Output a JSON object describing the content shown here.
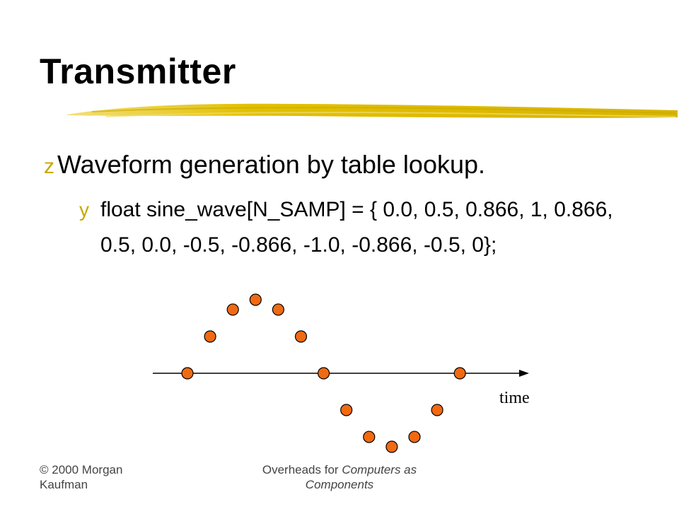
{
  "slide": {
    "title": "Transmitter",
    "bullet_level1": "Waveform generation by table lookup.",
    "bullet_level1_marker": "z",
    "bullet_level2_marker": "y",
    "bullet_level2": "float sine_wave[N_SAMP] = { 0.0, 0.5, 0.866, 1, 0.866, 0.5, 0.0, -0.5, -0.866, -1.0, -0.866,  -0.5, 0};",
    "accent_color": "#d4b400",
    "dot_color": "#f06a12"
  },
  "chart_data": {
    "type": "scatter",
    "xlabel": "time",
    "ylabel": "",
    "series": [
      {
        "x": [
          0,
          1,
          2,
          3,
          4,
          5,
          6,
          7,
          8,
          9,
          10,
          11,
          12
        ],
        "y": [
          0.0,
          0.5,
          0.866,
          1,
          0.866,
          0.5,
          0.0,
          -0.5,
          -0.866,
          -1.0,
          -0.866,
          -0.5,
          0
        ]
      }
    ],
    "ylim": [
      -1,
      1
    ]
  },
  "footer": {
    "left": "© 2000 Morgan Kaufman",
    "center_prefix": "Overheads for ",
    "center_italic": "Computers as Components"
  }
}
